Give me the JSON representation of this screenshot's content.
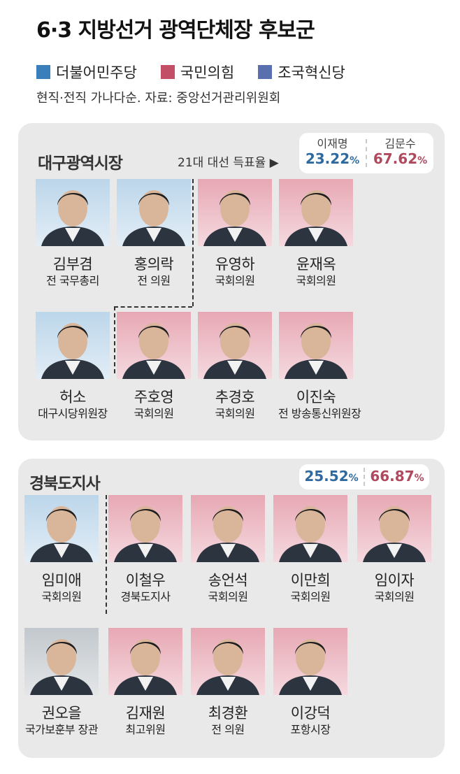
{
  "title": "6·3 지방선거 광역단체장 후보군",
  "legend": [
    {
      "label": "더불어민주당",
      "color": "#3a7fba"
    },
    {
      "label": "국민의힘",
      "color": "#c24f66"
    },
    {
      "label": "조국혁신당",
      "color": "#5a6fae"
    }
  ],
  "note": "현직·전직 가나다순. 자료: 중앙선거관리위원회",
  "daegu": {
    "title": "대구광역시장",
    "vote_label": "21대 대선 득표율 ▶",
    "lee_name": "이재명",
    "kim_name": "김문수",
    "lee_pct": "23.22",
    "kim_pct": "67.62",
    "pct_unit": "%",
    "candidates": [
      {
        "name": "김부겸",
        "role": "전 국무총리"
      },
      {
        "name": "홍의락",
        "role": "전 의원"
      },
      {
        "name": "유영하",
        "role": "국회의원"
      },
      {
        "name": "윤재옥",
        "role": "국회의원"
      },
      {
        "name": "허소",
        "role": "대구시당위원장"
      },
      {
        "name": "주호영",
        "role": "국회의원"
      },
      {
        "name": "추경호",
        "role": "국회의원"
      },
      {
        "name": "이진숙",
        "role": "전 방송통신위원장"
      }
    ]
  },
  "gyeongbuk": {
    "title": "경북도지사",
    "lee_pct": "25.52",
    "kim_pct": "66.87",
    "pct_unit": "%",
    "candidates": [
      {
        "name": "임미애",
        "role": "국회의원"
      },
      {
        "name": "이철우",
        "role": "경북도지사"
      },
      {
        "name": "송언석",
        "role": "국회의원"
      },
      {
        "name": "이만희",
        "role": "국회의원"
      },
      {
        "name": "임이자",
        "role": "국회의원"
      },
      {
        "name": "권오을",
        "role": "국가보훈부 장관"
      },
      {
        "name": "김재원",
        "role": "최고위원"
      },
      {
        "name": "최경환",
        "role": "전 의원"
      },
      {
        "name": "이강덕",
        "role": "포항시장"
      }
    ]
  }
}
